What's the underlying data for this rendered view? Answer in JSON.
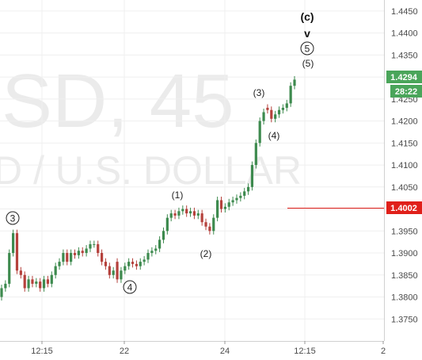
{
  "chart_data": {
    "type": "candlestick",
    "watermark_top": "SD, 45",
    "watermark_bottom": "D / U.S. DOLLAR",
    "x_ticks": [
      "12:15",
      "22",
      "24",
      "12:15",
      "2"
    ],
    "y_ticks": [
      "1.4450",
      "1.4400",
      "1.4350",
      "1.4300",
      "1.4250",
      "1.4200",
      "1.4150",
      "1.4100",
      "1.4050",
      "1.4000",
      "1.3950",
      "1.3900",
      "1.3850",
      "1.3800",
      "1.3750"
    ],
    "ylim": [
      1.37,
      1.4475
    ],
    "last_price": "1.4294",
    "countdown": "28:22",
    "level_price": "1.4002",
    "level_value": 1.4002,
    "last_value": 1.4294,
    "grid": true,
    "colors": {
      "up": "#3d8a4e",
      "down": "#b5413c",
      "level": "#e0201a",
      "last": "#4aa55a",
      "grid": "#efefef",
      "axis": "#d0d0d0"
    },
    "annotations": [
      {
        "text": "3",
        "circled": true
      },
      {
        "text": "(1)",
        "circled": false
      },
      {
        "text": "(2)",
        "circled": false
      },
      {
        "text": "4",
        "circled": true
      },
      {
        "text": "(3)",
        "circled": false
      },
      {
        "text": "(4)",
        "circled": false
      },
      {
        "text": "(c)",
        "circled": false
      },
      {
        "text": "v",
        "circled": false
      },
      {
        "text": "5",
        "circled": true
      },
      {
        "text": "(5)",
        "circled": false
      }
    ],
    "candles_close": [
      1.382,
      1.383,
      1.39,
      1.3945,
      1.386,
      1.385,
      1.382,
      1.384,
      1.383,
      1.3835,
      1.382,
      1.384,
      1.383,
      1.385,
      1.387,
      1.388,
      1.39,
      1.388,
      1.39,
      1.3895,
      1.3905,
      1.39,
      1.391,
      1.392,
      1.392,
      1.39,
      1.388,
      1.387,
      1.385,
      1.386,
      1.384,
      1.386,
      1.387,
      1.388,
      1.3875,
      1.387,
      1.388,
      1.3885,
      1.39,
      1.3905,
      1.391,
      1.393,
      1.395,
      1.398,
      1.399,
      1.3985,
      1.3995,
      1.4,
      1.399,
      1.3995,
      1.3985,
      1.399,
      1.397,
      1.396,
      1.395,
      1.398,
      1.402,
      1.4,
      1.4005,
      1.4015,
      1.402,
      1.4025,
      1.403,
      1.404,
      1.405,
      1.41,
      1.415,
      1.42,
      1.422,
      1.4225,
      1.4205,
      1.4215,
      1.4225,
      1.423,
      1.424,
      1.428,
      1.4294
    ],
    "candles_open": [
      1.38,
      1.382,
      1.383,
      1.39,
      1.3945,
      1.386,
      1.385,
      1.382,
      1.384,
      1.383,
      1.3835,
      1.382,
      1.384,
      1.383,
      1.385,
      1.387,
      1.388,
      1.39,
      1.388,
      1.39,
      1.3895,
      1.3905,
      1.39,
      1.391,
      1.392,
      1.392,
      1.39,
      1.388,
      1.387,
      1.385,
      1.388,
      1.384,
      1.386,
      1.387,
      1.388,
      1.3875,
      1.387,
      1.388,
      1.3885,
      1.39,
      1.3905,
      1.391,
      1.393,
      1.395,
      1.398,
      1.399,
      1.3985,
      1.3995,
      1.4,
      1.399,
      1.3995,
      1.3985,
      1.399,
      1.397,
      1.396,
      1.395,
      1.398,
      1.402,
      1.4,
      1.4005,
      1.4015,
      1.402,
      1.4025,
      1.403,
      1.404,
      1.405,
      1.41,
      1.415,
      1.42,
      1.423,
      1.4225,
      1.4205,
      1.4215,
      1.4225,
      1.423,
      1.424,
      1.428
    ]
  }
}
